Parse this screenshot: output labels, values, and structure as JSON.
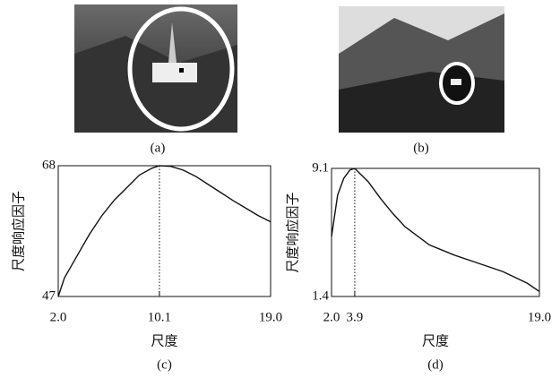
{
  "image_labels": [
    "(a)",
    "(b)"
  ],
  "chart_data": [
    {
      "type": "line",
      "caption": "(c)",
      "xlabel": "尺度",
      "ylabel": "尺度响应因子",
      "x": [
        2,
        2.5,
        3.5,
        4.5,
        5.5,
        6.5,
        7.5,
        8.5,
        9.5,
        10.1,
        11,
        12,
        13,
        14,
        15,
        16,
        17,
        18,
        19
      ],
      "series": [
        {
          "color": "#111111",
          "values": [
            47,
            50,
            53.5,
            57,
            60,
            62.5,
            64.5,
            66.5,
            67.6,
            68,
            67.9,
            67.3,
            66.3,
            65,
            63.7,
            62.4,
            61.2,
            60,
            59
          ]
        }
      ],
      "xlim": [
        2,
        19
      ],
      "ylim": [
        47,
        68
      ],
      "xticks": [
        {
          "value": 2,
          "label": "2.0"
        },
        10.1,
        {
          "value": 19,
          "label": "19.0"
        }
      ],
      "yticks": [
        47,
        68
      ]
    },
    {
      "type": "line",
      "caption": "(d)",
      "xlabel": "尺度",
      "ylabel": "尺度响应因子",
      "x": [
        2,
        2.5,
        3,
        3.5,
        3.9,
        5,
        6,
        7,
        8,
        10,
        12,
        14,
        16,
        18,
        19
      ],
      "series": [
        {
          "color": "#111111",
          "values": [
            5.0,
            7.5,
            8.5,
            9.0,
            9.1,
            8.3,
            7.3,
            6.4,
            5.6,
            4.5,
            3.9,
            3.4,
            2.9,
            2.2,
            1.7
          ]
        }
      ],
      "xlim": [
        2,
        19
      ],
      "ylim": [
        1.4,
        9.1
      ],
      "xticks": [
        {
          "value": 2,
          "label": "2.0"
        },
        3.9,
        {
          "value": 19,
          "label": "19.0"
        }
      ],
      "yticks": [
        1.4,
        9.1
      ]
    }
  ]
}
